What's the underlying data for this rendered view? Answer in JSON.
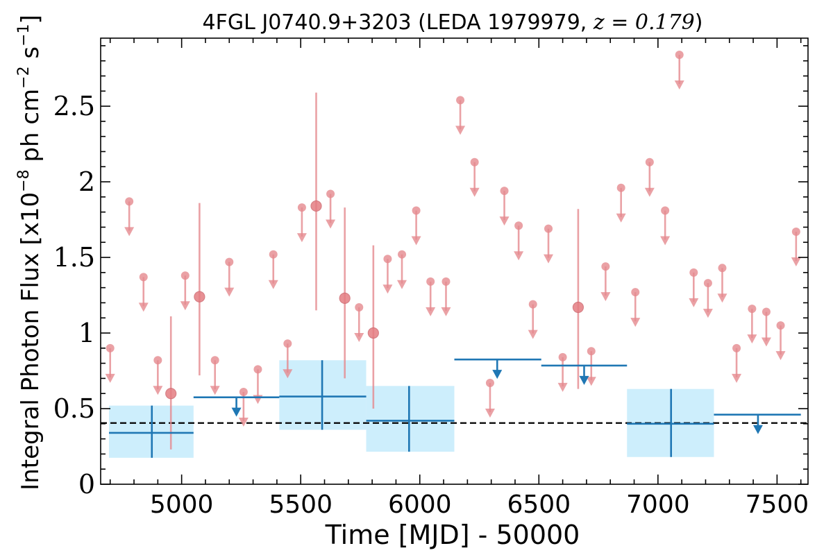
{
  "chart_data": {
    "type": "scatter",
    "title_main": "4FGL J0740.9+3203 (LEDA 1979979, ",
    "title_z": "z = 0.179",
    "title_close": ")",
    "xlabel": "Time [MJD] - 50000",
    "ylabel_prefix": "Integral Photon Flux [x10",
    "ylabel_exp1": "−8",
    "ylabel_mid": " ph cm",
    "ylabel_exp2": "−2",
    "ylabel_mid2": " s",
    "ylabel_exp3": "−1",
    "ylabel_suffix": "]",
    "xlim": [
      4660,
      7630
    ],
    "ylim": [
      0,
      2.95
    ],
    "x_ticks": [
      5000,
      5500,
      6000,
      6500,
      7000,
      7500
    ],
    "x_tick_labels": [
      "5000",
      "5500",
      "6000",
      "6500",
      "7000",
      "7500"
    ],
    "y_ticks": [
      0,
      0.5,
      1,
      1.5,
      2,
      2.5
    ],
    "y_tick_labels": [
      "0",
      "0.5",
      "1",
      "1.5",
      "2",
      "2.5"
    ],
    "reference_level": 0.405,
    "colors": {
      "short_bins": "#e58a8f",
      "long_bins": "#1f77b4",
      "band": "#cdeefc",
      "reference": "#000000"
    },
    "short_bins": {
      "detections": [
        {
          "x": 4955,
          "y": 0.6,
          "lo": 0.23,
          "hi": 1.11
        },
        {
          "x": 5075,
          "y": 1.24,
          "lo": 0.72,
          "hi": 1.86
        },
        {
          "x": 5565,
          "y": 1.84,
          "lo": 1.15,
          "hi": 2.59
        },
        {
          "x": 5685,
          "y": 1.23,
          "lo": 0.7,
          "hi": 1.83
        },
        {
          "x": 5805,
          "y": 1.0,
          "lo": 0.5,
          "hi": 1.58
        },
        {
          "x": 6665,
          "y": 1.17,
          "lo": 0.63,
          "hi": 1.82
        }
      ],
      "upper_limits": [
        {
          "x": 4700,
          "y": 0.9
        },
        {
          "x": 4780,
          "y": 1.87
        },
        {
          "x": 4840,
          "y": 1.37
        },
        {
          "x": 4900,
          "y": 0.82
        },
        {
          "x": 5015,
          "y": 1.38
        },
        {
          "x": 5140,
          "y": 0.82
        },
        {
          "x": 5200,
          "y": 1.47
        },
        {
          "x": 5260,
          "y": 0.61
        },
        {
          "x": 5320,
          "y": 0.76
        },
        {
          "x": 5385,
          "y": 1.52
        },
        {
          "x": 5445,
          "y": 0.93
        },
        {
          "x": 5505,
          "y": 1.83
        },
        {
          "x": 5625,
          "y": 1.92
        },
        {
          "x": 5745,
          "y": 1.17
        },
        {
          "x": 5865,
          "y": 1.49
        },
        {
          "x": 5925,
          "y": 1.52
        },
        {
          "x": 5985,
          "y": 1.81
        },
        {
          "x": 6045,
          "y": 1.34
        },
        {
          "x": 6110,
          "y": 1.34
        },
        {
          "x": 6170,
          "y": 2.54
        },
        {
          "x": 6230,
          "y": 2.13
        },
        {
          "x": 6295,
          "y": 0.67
        },
        {
          "x": 6355,
          "y": 1.94
        },
        {
          "x": 6415,
          "y": 1.71
        },
        {
          "x": 6475,
          "y": 1.19
        },
        {
          "x": 6540,
          "y": 1.69
        },
        {
          "x": 6600,
          "y": 0.84
        },
        {
          "x": 6720,
          "y": 0.88
        },
        {
          "x": 6780,
          "y": 1.44
        },
        {
          "x": 6845,
          "y": 1.96
        },
        {
          "x": 6905,
          "y": 1.27
        },
        {
          "x": 6965,
          "y": 2.13
        },
        {
          "x": 7030,
          "y": 1.81
        },
        {
          "x": 7090,
          "y": 2.84
        },
        {
          "x": 7150,
          "y": 1.4
        },
        {
          "x": 7210,
          "y": 1.33
        },
        {
          "x": 7270,
          "y": 1.43
        },
        {
          "x": 7330,
          "y": 0.9
        },
        {
          "x": 7395,
          "y": 1.16
        },
        {
          "x": 7455,
          "y": 1.14
        },
        {
          "x": 7515,
          "y": 1.05
        },
        {
          "x": 7580,
          "y": 1.67
        }
      ]
    },
    "long_bins": {
      "detections": [
        {
          "x": 4875,
          "x0": 4695,
          "x1": 5050,
          "y": 0.34,
          "lo": 0.175,
          "hi": 0.52,
          "band_lo": 0.175,
          "band_hi": 0.52
        },
        {
          "x": 5590,
          "x0": 5410,
          "x1": 5775,
          "y": 0.58,
          "lo": 0.36,
          "hi": 0.82,
          "band_lo": 0.36,
          "band_hi": 0.82
        },
        {
          "x": 5955,
          "x0": 5775,
          "x1": 6145,
          "y": 0.42,
          "lo": 0.215,
          "hi": 0.65,
          "band_lo": 0.215,
          "band_hi": 0.65
        },
        {
          "x": 7055,
          "x0": 6870,
          "x1": 7235,
          "y": 0.4,
          "lo": 0.18,
          "hi": 0.63,
          "band_lo": 0.18,
          "band_hi": 0.63
        }
      ],
      "upper_limits": [
        {
          "x": 5230,
          "x0": 5050,
          "x1": 5410,
          "y": 0.575
        },
        {
          "x": 6325,
          "x0": 6145,
          "x1": 6510,
          "y": 0.825
        },
        {
          "x": 6690,
          "x0": 6510,
          "x1": 6870,
          "y": 0.785
        },
        {
          "x": 7420,
          "x0": 7235,
          "x1": 7600,
          "y": 0.46
        }
      ]
    }
  }
}
